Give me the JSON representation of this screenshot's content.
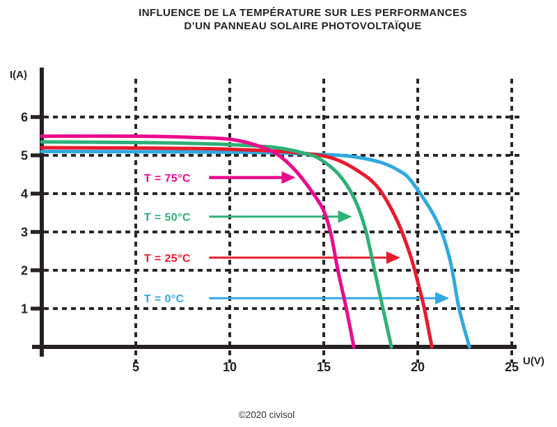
{
  "title": {
    "line1": "INFLUENCE DE LA TEMPÉRATURE SUR LES PERFORMANCES",
    "line2": "D’UN PANNEAU SOLAIRE PHOTOVOLTAÏQUE"
  },
  "footer": {
    "credit": "©2020 civisol"
  },
  "colors": {
    "background": "#ffffff",
    "axis": "#262223",
    "grid": "#2a2627",
    "text": "#262223",
    "series_75c": "#eb0b8d",
    "series_50c": "#2eb077",
    "series_25c": "#e81b2d",
    "series_0c": "#31a8e0"
  },
  "chart_data": {
    "type": "line",
    "title": "INFLUENCE DE LA TEMPÉRATURE SUR LES PERFORMANCES D’UN PANNEAU SOLAIRE PHOTOVOLTAÏQUE",
    "xlabel": "U(V)",
    "ylabel": "I(A)",
    "xticks": [
      5,
      10,
      15,
      20,
      25
    ],
    "yticks": [
      1,
      2,
      3,
      4,
      5,
      6
    ],
    "xlim": [
      0,
      26.5
    ],
    "ylim": [
      0,
      7.3
    ],
    "grid": "dashed",
    "legend_position": "inline-arrows",
    "series": [
      {
        "name": "T = 75°C",
        "temperature_c": 75,
        "color": "#eb0b8d",
        "short_circuit_current_a": 5.5,
        "open_circuit_voltage_v": 16.6,
        "points": [
          [
            0,
            5.5
          ],
          [
            5,
            5.5
          ],
          [
            8,
            5.47
          ],
          [
            10,
            5.42
          ],
          [
            11.5,
            5.25
          ],
          [
            12.6,
            5.0
          ],
          [
            13.5,
            4.6
          ],
          [
            14.3,
            4.1
          ],
          [
            15.0,
            3.55
          ],
          [
            15.4,
            2.9
          ],
          [
            15.75,
            2.0
          ],
          [
            16.2,
            1.0
          ],
          [
            16.6,
            0
          ]
        ],
        "arrow": {
          "i": 4.42,
          "u_start": 8.9,
          "u_end": 13.5,
          "shaft_width": 4.5
        },
        "label": {
          "text": "T = 75°C",
          "u": 5.44,
          "i": 4.42
        }
      },
      {
        "name": "T = 50°C",
        "temperature_c": 50,
        "color": "#2eb077",
        "short_circuit_current_a": 5.35,
        "open_circuit_voltage_v": 18.6,
        "points": [
          [
            0,
            5.35
          ],
          [
            6,
            5.33
          ],
          [
            10,
            5.28
          ],
          [
            12.5,
            5.2
          ],
          [
            14,
            5.05
          ],
          [
            14.8,
            4.9
          ],
          [
            15.8,
            4.5
          ],
          [
            16.6,
            3.9
          ],
          [
            17.2,
            3.1
          ],
          [
            17.7,
            2.0
          ],
          [
            18.15,
            1.0
          ],
          [
            18.6,
            0
          ]
        ],
        "arrow": {
          "i": 3.4,
          "u_start": 8.9,
          "u_end": 16.5,
          "shaft_width": 3
        },
        "label": {
          "text": "T = 50°C",
          "u": 5.44,
          "i": 3.4
        }
      },
      {
        "name": "T = 25°C",
        "temperature_c": 25,
        "color": "#e81b2d",
        "short_circuit_current_a": 5.2,
        "open_circuit_voltage_v": 20.75,
        "points": [
          [
            0,
            5.2
          ],
          [
            8,
            5.18
          ],
          [
            12,
            5.12
          ],
          [
            14,
            5.05
          ],
          [
            15.5,
            4.92
          ],
          [
            16.8,
            4.6
          ],
          [
            17.9,
            4.15
          ],
          [
            18.9,
            3.3
          ],
          [
            19.6,
            2.4
          ],
          [
            20.05,
            1.6
          ],
          [
            20.35,
            1.0
          ],
          [
            20.75,
            0
          ]
        ],
        "arrow": {
          "i": 2.33,
          "u_start": 8.9,
          "u_end": 19.07,
          "shaft_width": 3
        },
        "label": {
          "text": "T = 25°C",
          "u": 5.44,
          "i": 2.33
        }
      },
      {
        "name": "T = 0°C",
        "temperature_c": 0,
        "color": "#31a8e0",
        "short_circuit_current_a": 5.1,
        "open_circuit_voltage_v": 22.75,
        "points": [
          [
            0,
            5.1
          ],
          [
            8,
            5.09
          ],
          [
            12,
            5.07
          ],
          [
            15,
            5.02
          ],
          [
            16.5,
            4.97
          ],
          [
            18,
            4.82
          ],
          [
            19.0,
            4.6
          ],
          [
            19.7,
            4.3
          ],
          [
            21.0,
            3.3
          ],
          [
            21.7,
            2.3
          ],
          [
            22.2,
            1.0
          ],
          [
            22.75,
            0
          ]
        ],
        "arrow": {
          "i": 1.27,
          "u_start": 8.9,
          "u_end": 21.67,
          "shaft_width": 3
        },
        "label": {
          "text": "T = 0°C",
          "u": 5.44,
          "i": 1.27
        }
      }
    ]
  }
}
